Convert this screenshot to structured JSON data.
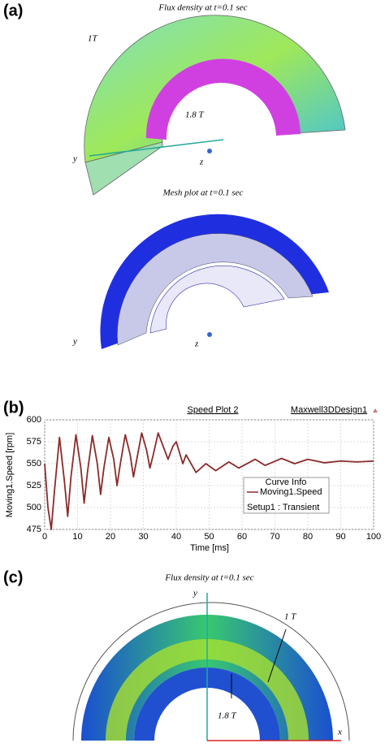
{
  "panel_a": {
    "label": "(a)",
    "flux_title": "Flux density at t=0.1 sec",
    "flux_low": "1T",
    "flux_high": "1.8 T",
    "flux_y": "y",
    "flux_z": "z",
    "mesh_title": "Mesh plot at t=0.1 sec",
    "mesh_y": "y",
    "mesh_z": "z"
  },
  "chart_data": {
    "type": "line",
    "label": "(b)",
    "title": "Speed Plot 2",
    "subtitle": "Maxwell3DDesign1",
    "x_label": "Time [ms]",
    "y_label": "Moving1.Speed [rpm]",
    "legend_title": "Curve Info",
    "legend_note": "Setup1 : Transient",
    "x": [
      0,
      1,
      2,
      3,
      4.5,
      6,
      7,
      8,
      9.5,
      11,
      12,
      13,
      14.5,
      16,
      17,
      18,
      19.5,
      21,
      22,
      23,
      24.5,
      26,
      27,
      28,
      29.5,
      31,
      32,
      33,
      34.5,
      36,
      37.5,
      39,
      40,
      42,
      43,
      46,
      49,
      52,
      56,
      59,
      64,
      67,
      72,
      76,
      80,
      85,
      90,
      95,
      100
    ],
    "series": [
      {
        "name": "Moving1.Speed",
        "color": "#8b2b2b",
        "values": [
          550,
          500,
          475,
          520,
          580,
          530,
          490,
          535,
          583,
          545,
          505,
          540,
          582,
          550,
          515,
          545,
          580,
          555,
          525,
          550,
          583,
          560,
          535,
          555,
          585,
          565,
          545,
          560,
          585,
          570,
          555,
          570,
          575,
          550,
          560,
          540,
          550,
          542,
          552,
          545,
          555,
          548,
          556,
          550,
          555,
          551,
          553,
          552,
          553
        ]
      }
    ],
    "xlim": [
      0,
      100
    ],
    "xticks": [
      0,
      10,
      20,
      30,
      40,
      50,
      60,
      70,
      80,
      90,
      100
    ],
    "ylim": [
      475,
      600
    ],
    "yticks": [
      475,
      500,
      525,
      550,
      575,
      600
    ],
    "grid": true
  },
  "panel_c": {
    "label": "(c)",
    "flux_title": "Flux density at t=0.1 sec",
    "axis_y": "y",
    "flux_low": "1 T",
    "flux_high": "1.8 T",
    "axis_x": "x"
  }
}
